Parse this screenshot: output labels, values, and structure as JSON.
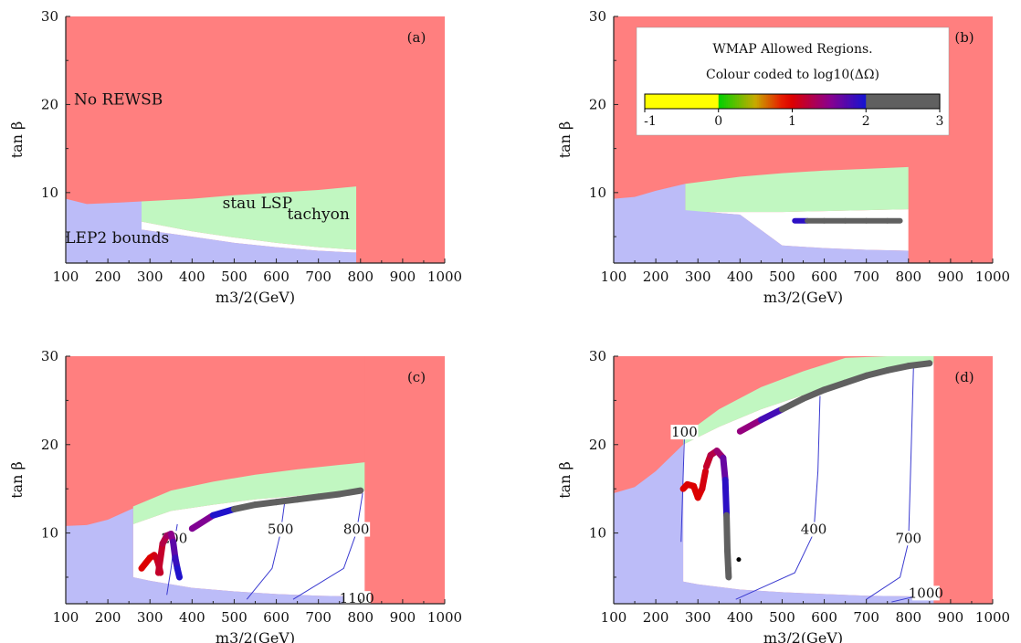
{
  "colors": {
    "no_rewsb": "#ff7f7f",
    "lep2": "#bcbcf8",
    "stau": "#c1f7c1",
    "axis": "#222222",
    "contour": "#3a3ad0",
    "gray_band": "#606060",
    "dot": "#000000"
  },
  "axes": {
    "xlabel": "m3/2(GeV)",
    "ylabel": "tan β",
    "x_ticks": [
      "100",
      "200",
      "300",
      "400",
      "500",
      "600",
      "700",
      "800",
      "900",
      "1000"
    ],
    "y_ticks": [
      "10",
      "20",
      "30"
    ]
  },
  "legend": {
    "title_line1": "WMAP Allowed Regions.",
    "title_line2": "Colour coded to log10(ΔΩ)",
    "tick_labels": [
      "-1",
      "0",
      "1",
      "2",
      "3"
    ]
  },
  "chart_data": [
    {
      "type": "area",
      "panel": "(a)",
      "xlabel": "m3/2(GeV)",
      "ylabel": "tan β",
      "xlim": [
        100,
        1000
      ],
      "ylim": [
        2,
        30
      ],
      "region_labels": [
        "No REWSB",
        "stau LSP",
        "tachyon",
        "LEP2 bounds"
      ],
      "regions": {
        "lep2": {
          "x": [
            100,
            150,
            200,
            280,
            280,
            400,
            500,
            600,
            700,
            780,
            790
          ],
          "lower": [
            2,
            2,
            2,
            2,
            2,
            2,
            2,
            2,
            2,
            2,
            2
          ],
          "upper": [
            9.3,
            8.7,
            8.8,
            9.0,
            5.8,
            5.0,
            4.3,
            3.8,
            3.4,
            3.2,
            3.2
          ]
        },
        "stau": {
          "x": [
            280,
            400,
            500,
            600,
            700,
            790
          ],
          "lower": [
            6.7,
            5.6,
            4.9,
            4.3,
            3.8,
            3.5
          ],
          "upper": [
            9.0,
            9.3,
            9.7,
            10.0,
            10.3,
            10.7
          ]
        },
        "tachyon_x": 790
      }
    },
    {
      "type": "area",
      "panel": "(b)",
      "xlabel": "m3/2(GeV)",
      "ylabel": "tan β",
      "xlim": [
        100,
        1000
      ],
      "ylim": [
        2,
        30
      ],
      "regions": {
        "lep2": {
          "x": [
            100,
            150,
            200,
            270,
            270,
            400,
            500,
            600,
            700,
            800
          ],
          "lower": [
            2,
            2,
            2,
            2,
            2,
            2,
            2,
            2,
            2,
            2
          ],
          "upper": [
            9.3,
            9.5,
            10.2,
            11.0,
            8.0,
            7.5,
            4.0,
            3.7,
            3.5,
            3.4
          ]
        },
        "stau": {
          "x": [
            270,
            400,
            500,
            600,
            700,
            800
          ],
          "lower": [
            7.8,
            7.8,
            7.8,
            7.9,
            8.0,
            8.1
          ],
          "upper": [
            11.0,
            11.8,
            12.2,
            12.5,
            12.7,
            12.9
          ]
        },
        "tachyon_x": 800
      },
      "series": [
        {
          "x": [
            530,
            560,
            600,
            650,
            700,
            750,
            780
          ],
          "y": [
            6.8,
            6.8,
            6.8,
            6.8,
            6.8,
            6.8,
            6.8
          ],
          "log10_dOmega": [
            1.8,
            2.0,
            2.6,
            2.9,
            3.0,
            3.0,
            3.0
          ]
        }
      ]
    },
    {
      "type": "area",
      "panel": "(c)",
      "xlabel": "m3/2(GeV)",
      "ylabel": "tan β",
      "xlim": [
        100,
        1000
      ],
      "ylim": [
        2,
        30
      ],
      "regions": {
        "lep2": {
          "x": [
            100,
            150,
            200,
            260,
            260,
            300,
            400,
            500,
            600,
            700,
            810
          ],
          "lower": [
            2,
            2,
            2,
            2,
            2,
            2,
            2,
            2,
            2,
            2,
            2
          ],
          "upper": [
            10.8,
            10.9,
            11.5,
            12.8,
            5.0,
            4.6,
            3.8,
            3.4,
            3.1,
            2.9,
            2.8
          ]
        },
        "stau": {
          "x": [
            260,
            350,
            450,
            550,
            650,
            750,
            810
          ],
          "lower": [
            11.0,
            12.5,
            13.2,
            13.8,
            14.2,
            14.6,
            14.8
          ],
          "upper": [
            13.0,
            14.8,
            15.8,
            16.6,
            17.2,
            17.7,
            18.0
          ]
        },
        "tachyon_x": 810
      },
      "series": [
        {
          "x": [
            280,
            290,
            300,
            310,
            315,
            320,
            325
          ],
          "y": [
            6.0,
            6.6,
            7.2,
            7.5,
            7.2,
            6.5,
            5.5
          ],
          "log10_dOmega": [
            1.0,
            1.0,
            1.0,
            1.0,
            1.1,
            1.1,
            1.2
          ]
        },
        {
          "x": [
            320,
            330,
            340,
            350,
            355,
            360,
            365,
            370
          ],
          "y": [
            5.5,
            8.8,
            9.7,
            9.9,
            9.0,
            7.2,
            6.0,
            5.0
          ],
          "log10_dOmega": [
            1.1,
            1.2,
            1.3,
            1.4,
            1.6,
            1.8,
            1.9,
            2.0
          ]
        },
        {
          "x": [
            400,
            450,
            500,
            550,
            600,
            650,
            700,
            750,
            800
          ],
          "y": [
            10.5,
            12.0,
            12.7,
            13.2,
            13.5,
            13.8,
            14.1,
            14.4,
            14.8
          ],
          "log10_dOmega": [
            1.3,
            1.8,
            2.1,
            2.5,
            2.8,
            3.0,
            3.0,
            3.0,
            3.0
          ]
        }
      ],
      "contours": [
        {
          "level": "200",
          "x": [
            340,
            350,
            358,
            365
          ],
          "y": [
            3.0,
            6.0,
            9.0,
            11.0
          ]
        },
        {
          "level": "500",
          "x": [
            530,
            590,
            610,
            620
          ],
          "y": [
            2.5,
            6.0,
            10.0,
            13.5
          ]
        },
        {
          "level": "800",
          "x": [
            640,
            760,
            790,
            805
          ],
          "y": [
            2.5,
            6.0,
            10.0,
            14.5
          ]
        },
        {
          "level": "1100",
          "x": [
            760,
            800
          ],
          "y": [
            2.1,
            2.6
          ]
        }
      ]
    },
    {
      "type": "area",
      "panel": "(d)",
      "xlabel": "m3/2(GeV)",
      "ylabel": "tan β",
      "xlim": [
        100,
        1000
      ],
      "ylim": [
        2,
        30
      ],
      "regions": {
        "lep2": {
          "x": [
            100,
            150,
            200,
            265,
            265,
            300,
            400,
            500,
            600,
            700,
            860
          ],
          "lower": [
            2,
            2,
            2,
            2,
            2,
            2,
            2,
            2,
            2,
            2,
            2
          ],
          "upper": [
            14.5,
            15.2,
            17.0,
            20.0,
            4.5,
            4.2,
            3.6,
            3.3,
            3.1,
            2.9,
            2.8
          ]
        },
        "stau": {
          "x": [
            265,
            350,
            450,
            550,
            650,
            750,
            860
          ],
          "lower": [
            20.0,
            22.0,
            24.0,
            25.6,
            27.0,
            28.2,
            29.3
          ],
          "upper": [
            21.0,
            24.0,
            26.5,
            28.3,
            29.8,
            30.0,
            30.0
          ]
        },
        "tachyon_x": 860
      },
      "series": [
        {
          "x": [
            265,
            275,
            290,
            300,
            310,
            318
          ],
          "y": [
            15.0,
            15.5,
            15.3,
            14.0,
            15.0,
            17.0
          ],
          "log10_dOmega": [
            1.0,
            1.0,
            1.0,
            1.0,
            1.0,
            1.1
          ]
        },
        {
          "x": [
            320,
            330,
            345,
            360,
            365,
            368,
            370,
            372,
            373
          ],
          "y": [
            17.5,
            18.8,
            19.3,
            18.5,
            16.0,
            12.0,
            8.0,
            6.0,
            5.0
          ],
          "log10_dOmega": [
            1.1,
            1.2,
            1.3,
            1.5,
            1.8,
            2.0,
            2.0,
            2.0,
            2.0
          ]
        },
        {
          "x": [
            400,
            450,
            500,
            550,
            600,
            650,
            700,
            750,
            800,
            850
          ],
          "y": [
            21.5,
            22.8,
            24.0,
            25.2,
            26.2,
            27.0,
            27.8,
            28.4,
            28.9,
            29.2
          ],
          "log10_dOmega": [
            1.3,
            1.6,
            2.0,
            2.4,
            2.8,
            3.0,
            3.0,
            3.0,
            3.0,
            3.0
          ]
        }
      ],
      "points": [
        {
          "x": 397,
          "y": 7.0
        }
      ],
      "contours": [
        {
          "level": "100",
          "x": [
            260,
            268
          ],
          "y": [
            9.0,
            21.0
          ]
        },
        {
          "level": "400",
          "x": [
            390,
            530,
            575,
            585,
            590
          ],
          "y": [
            2.5,
            5.5,
            10.0,
            17.0,
            25.5
          ]
        },
        {
          "level": "700",
          "x": [
            700,
            780,
            800,
            805,
            812
          ],
          "y": [
            2.5,
            5.0,
            9.0,
            17.0,
            28.8
          ]
        },
        {
          "level": "1000",
          "x": [
            760,
            850
          ],
          "y": [
            2.2,
            3.2
          ]
        }
      ]
    }
  ]
}
